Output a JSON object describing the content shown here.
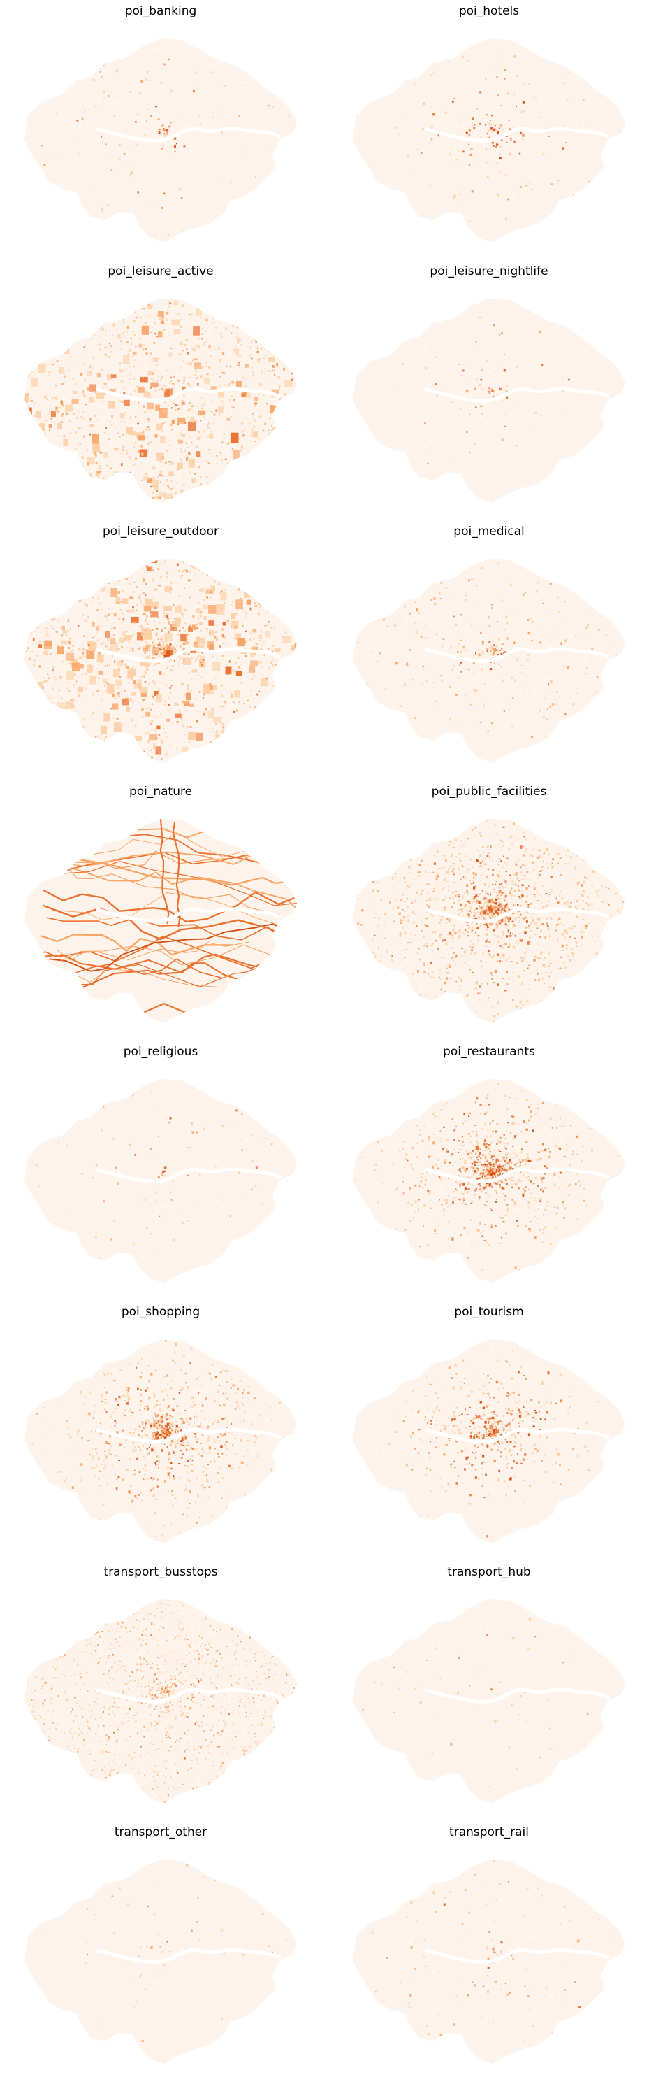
{
  "colors": {
    "land_base": "#fff4eb",
    "dot_light": "#fcd0a6",
    "dot_medium": "#f9a566",
    "dot_strong": "#ec7232",
    "dot_dark": "#d94d0f",
    "river": "#ffffff"
  },
  "panels": [
    {
      "title": "poi_banking",
      "density": 0.05,
      "center_focus": 0.5,
      "pattern": "sparse"
    },
    {
      "title": "poi_hotels",
      "density": 0.06,
      "center_focus": 0.8,
      "pattern": "sparse"
    },
    {
      "title": "poi_leisure_active",
      "density": 0.55,
      "center_focus": 0.1,
      "pattern": "patches"
    },
    {
      "title": "poi_leisure_nightlife",
      "density": 0.02,
      "center_focus": 0.9,
      "pattern": "sparse"
    },
    {
      "title": "poi_leisure_outdoor",
      "density": 0.6,
      "center_focus": 0.2,
      "pattern": "patches"
    },
    {
      "title": "poi_medical",
      "density": 0.12,
      "center_focus": 0.4,
      "pattern": "sparse"
    },
    {
      "title": "poi_nature",
      "density": 0.35,
      "center_focus": 0.0,
      "pattern": "lines"
    },
    {
      "title": "poi_public_facilities",
      "density": 0.7,
      "center_focus": 0.5,
      "pattern": "dense"
    },
    {
      "title": "poi_religious",
      "density": 0.03,
      "center_focus": 0.3,
      "pattern": "sparse"
    },
    {
      "title": "poi_restaurants",
      "density": 0.4,
      "center_focus": 0.85,
      "pattern": "dense"
    },
    {
      "title": "poi_shopping",
      "density": 0.4,
      "center_focus": 0.7,
      "pattern": "dense"
    },
    {
      "title": "poi_tourism",
      "density": 0.25,
      "center_focus": 0.9,
      "pattern": "sparse"
    },
    {
      "title": "transport_busstops",
      "density": 0.8,
      "center_focus": 0.2,
      "pattern": "mesh"
    },
    {
      "title": "transport_hub",
      "density": 0.02,
      "center_focus": 0.2,
      "pattern": "sparse"
    },
    {
      "title": "transport_other",
      "density": 0.02,
      "center_focus": 0.2,
      "pattern": "sparse"
    },
    {
      "title": "transport_rail",
      "density": 0.05,
      "center_focus": 0.3,
      "pattern": "sparse"
    }
  ]
}
